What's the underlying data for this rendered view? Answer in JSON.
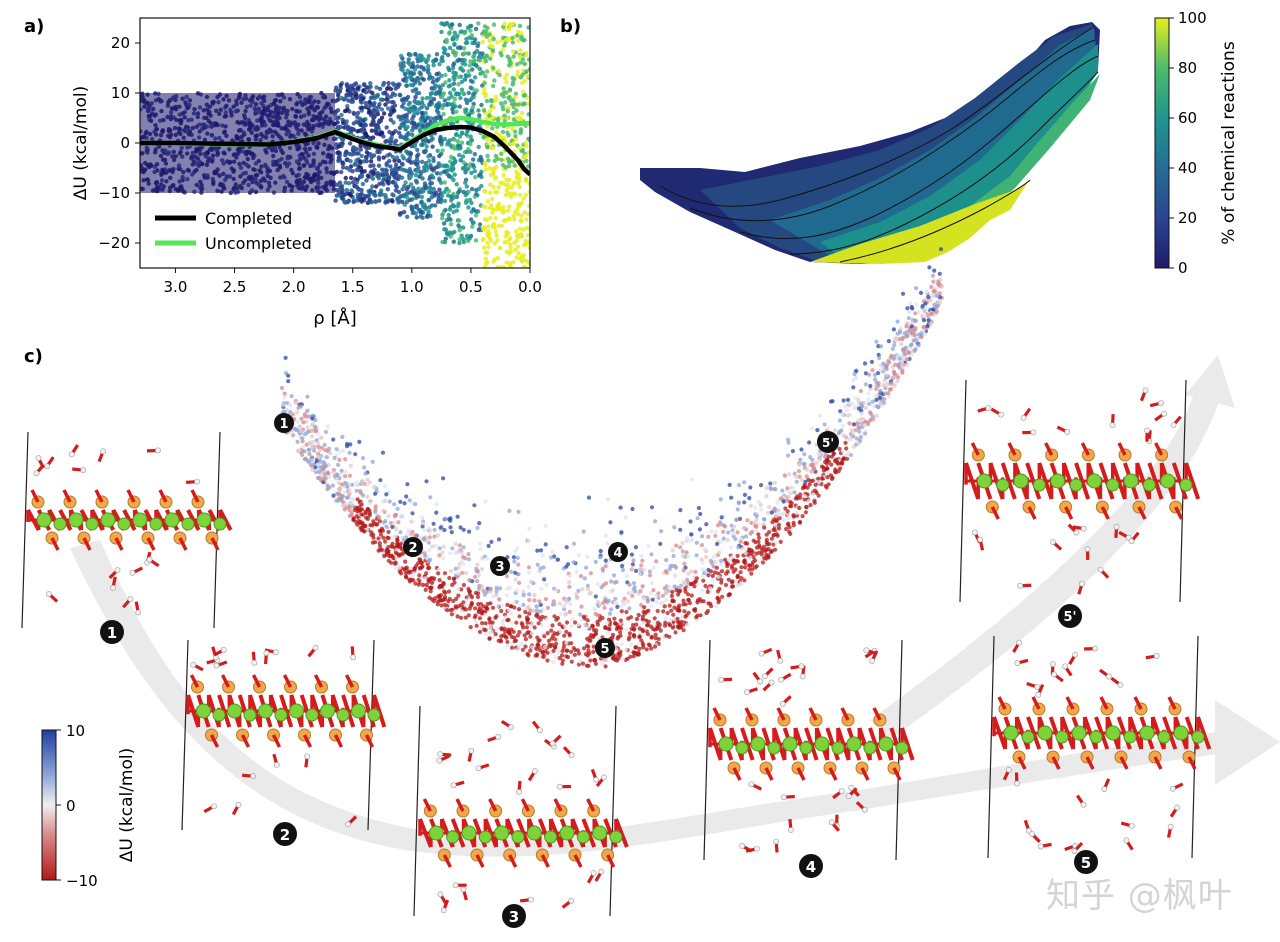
{
  "panels": {
    "a": "a)",
    "b": "b)",
    "c": "c)"
  },
  "chart_data": [
    {
      "id": "a",
      "type": "scatter",
      "ylabel": "ΔU (kcal/mol)",
      "xlabel": "ρ [Å]",
      "xlim": [
        3.3,
        0.0
      ],
      "ylim": [
        -25,
        25
      ],
      "xticks": [
        3.0,
        2.5,
        2.0,
        1.5,
        1.0,
        0.5,
        0.0
      ],
      "xtick_labels": [
        "3.0",
        "2.5",
        "2.0",
        "1.5",
        "1.0",
        "0.5",
        "0.0"
      ],
      "yticks": [
        20,
        10,
        0,
        -10,
        -20
      ],
      "ytick_labels": [
        "20",
        "10",
        "0",
        "−10",
        "−20"
      ],
      "legend_position": "lower-left",
      "series": [
        {
          "name": "Completed",
          "color": "#000000",
          "x": [
            3.3,
            3.0,
            2.5,
            2.2,
            2.0,
            1.8,
            1.65,
            1.5,
            1.4,
            1.3,
            1.2,
            1.1,
            1.0,
            0.9,
            0.8,
            0.7,
            0.6,
            0.5,
            0.4,
            0.3,
            0.2,
            0.1,
            0.05,
            0.0
          ],
          "y": [
            0,
            0,
            -0.2,
            -0.3,
            0.2,
            1.0,
            2.2,
            0.8,
            0,
            -0.6,
            -0.9,
            -1.3,
            0.2,
            1.6,
            2.6,
            3.0,
            3.2,
            3.1,
            2.4,
            1.2,
            -1.0,
            -3.5,
            -5.2,
            -6.3
          ]
        },
        {
          "name": "Uncompleted",
          "color": "#55e655",
          "x": [
            3.3,
            3.0,
            2.5,
            2.2,
            2.0,
            1.8,
            1.65,
            1.5,
            1.4,
            1.3,
            1.2,
            1.1,
            1.0,
            0.9,
            0.8,
            0.7,
            0.6,
            0.5,
            0.4,
            0.3,
            0.2,
            0.1,
            0.0
          ],
          "y": [
            0,
            -0.1,
            -0.3,
            -0.3,
            0.3,
            1.2,
            2.4,
            1.0,
            0.2,
            -0.3,
            -0.8,
            -1.0,
            0.5,
            2.0,
            3.6,
            4.5,
            5.0,
            4.8,
            4.2,
            3.8,
            3.7,
            3.8,
            4.0
          ]
        }
      ],
      "scatter_bands": [
        {
          "x": [
            3.3,
            1.65
          ],
          "y": [
            -10,
            10
          ],
          "color_scale_value": 0
        },
        {
          "x": [
            1.65,
            1.1
          ],
          "y": [
            -12,
            12
          ],
          "color_scale_value": 20
        },
        {
          "x": [
            1.1,
            0.75
          ],
          "y": [
            -15,
            18
          ],
          "color_scale_value": 40
        },
        {
          "x": [
            0.75,
            0.4
          ],
          "y": [
            -20,
            24
          ],
          "color_scale_value": 60
        },
        {
          "x": [
            0.4,
            0.0
          ],
          "y": [
            -25,
            24
          ],
          "color_scale_value": 90
        }
      ]
    },
    {
      "id": "b",
      "type": "heatmap",
      "colorbar_label": "% of chemical reactions",
      "colorbar_range": [
        0,
        100
      ],
      "colorbar_ticks": [
        0,
        20,
        40,
        60,
        80,
        100
      ],
      "colorbar_tick_labels": [
        "0",
        "20",
        "40",
        "60",
        "80",
        "100"
      ],
      "contour_levels": [
        10,
        20,
        30,
        40,
        50,
        60,
        70,
        80,
        90
      ]
    },
    {
      "id": "c",
      "type": "scatter",
      "colorbar_label": "ΔU (kcal/mol)",
      "colorbar_range": [
        -10,
        10
      ],
      "colorbar_ticks": [
        10,
        0,
        -10
      ],
      "colorbar_tick_labels": [
        "10",
        "0",
        "−10"
      ],
      "state_markers": [
        "1",
        "2",
        "3",
        "4",
        "5",
        "5'"
      ],
      "structure_labels": [
        "1",
        "2",
        "3",
        "4",
        "5",
        "5'"
      ]
    }
  ],
  "legend": {
    "completed": "Completed",
    "uncompleted": "Uncompleted"
  },
  "watermark": "知乎 @枫叶",
  "colors": {
    "cb_viridis_low": "#1f1a6e",
    "cb_viridis_high": "#e6ee1e",
    "cb_rwb_high": "#1f3f9f",
    "cb_rwb_low": "#b41818",
    "silicon": "#f0a84a",
    "magnesium": "#7ed33a",
    "oxygen": "#d41c1c",
    "hydrogen": "#f2f2f2",
    "arrow": "#e8e8e8"
  }
}
